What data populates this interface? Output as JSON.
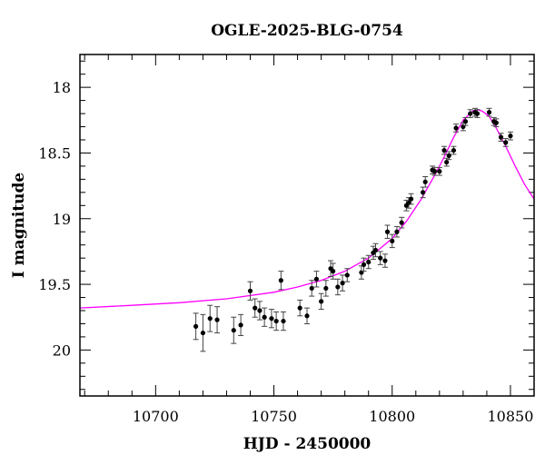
{
  "chart_data": {
    "type": "scatter",
    "title": "OGLE-2025-BLG-0754",
    "xlabel": "HJD - 2450000",
    "ylabel": "I magnitude",
    "xlim": [
      10668,
      10860
    ],
    "ylim": [
      20.35,
      17.75
    ],
    "y_inverted": true,
    "x_ticks": [
      10700,
      10750,
      10800,
      10850
    ],
    "y_ticks": [
      18,
      18.5,
      19,
      19.5,
      20
    ],
    "y_tick_labels": [
      "18",
      "18.5",
      "19",
      "19.5",
      "20"
    ],
    "grid": false,
    "colors": {
      "points": "#000000",
      "model": "#ff00ff"
    },
    "series": [
      {
        "kind": "points",
        "x": [
          10717,
          10720,
          10723,
          10726,
          10733,
          10736,
          10740,
          10742,
          10744,
          10746,
          10749,
          10751,
          10753,
          10754,
          10761,
          10764,
          10766,
          10768,
          10770,
          10772,
          10774,
          10775,
          10777,
          10779,
          10781,
          10787,
          10788,
          10790,
          10792,
          10793,
          10795,
          10797,
          10798,
          10800,
          10802,
          10804,
          10806,
          10807,
          10808,
          10813,
          10814,
          10817,
          10818,
          10820,
          10822,
          10823,
          10824,
          10826,
          10827,
          10830,
          10831,
          10833,
          10835,
          10836,
          10841,
          10843,
          10844,
          10846,
          10848,
          10850
        ],
        "y": [
          19.82,
          19.87,
          19.76,
          19.77,
          19.85,
          19.81,
          19.55,
          19.68,
          19.7,
          19.75,
          19.76,
          19.78,
          19.47,
          19.78,
          19.68,
          19.74,
          19.53,
          19.46,
          19.63,
          19.53,
          19.38,
          19.4,
          19.52,
          19.49,
          19.43,
          19.41,
          19.35,
          19.33,
          19.26,
          19.24,
          19.3,
          19.32,
          19.1,
          19.17,
          19.1,
          19.03,
          18.9,
          18.88,
          18.85,
          18.8,
          18.72,
          18.63,
          18.64,
          18.64,
          18.48,
          18.57,
          18.52,
          18.48,
          18.31,
          18.3,
          18.26,
          18.2,
          18.19,
          18.2,
          18.19,
          18.26,
          18.27,
          18.38,
          18.42,
          18.37
        ],
        "err": [
          0.1,
          0.14,
          0.1,
          0.1,
          0.1,
          0.08,
          0.07,
          0.07,
          0.07,
          0.07,
          0.07,
          0.07,
          0.07,
          0.07,
          0.06,
          0.06,
          0.06,
          0.06,
          0.06,
          0.06,
          0.06,
          0.06,
          0.06,
          0.06,
          0.05,
          0.05,
          0.05,
          0.05,
          0.05,
          0.05,
          0.05,
          0.05,
          0.05,
          0.05,
          0.04,
          0.04,
          0.04,
          0.04,
          0.04,
          0.04,
          0.04,
          0.03,
          0.03,
          0.03,
          0.03,
          0.03,
          0.03,
          0.03,
          0.03,
          0.03,
          0.03,
          0.03,
          0.03,
          0.03,
          0.03,
          0.03,
          0.03,
          0.03,
          0.03,
          0.03
        ]
      },
      {
        "kind": "line",
        "x": [
          10668,
          10690,
          10710,
          10730,
          10750,
          10760,
          10770,
          10780,
          10790,
          10800,
          10806,
          10812,
          10818,
          10822,
          10826,
          10830,
          10834,
          10836,
          10838,
          10841,
          10844,
          10848,
          10852,
          10856,
          10860
        ],
        "y": [
          19.68,
          19.66,
          19.64,
          19.61,
          19.56,
          19.52,
          19.47,
          19.4,
          19.3,
          19.15,
          19.02,
          18.86,
          18.67,
          18.53,
          18.38,
          18.25,
          18.18,
          18.17,
          18.18,
          18.22,
          18.31,
          18.45,
          18.6,
          18.74,
          18.85
        ]
      }
    ]
  }
}
